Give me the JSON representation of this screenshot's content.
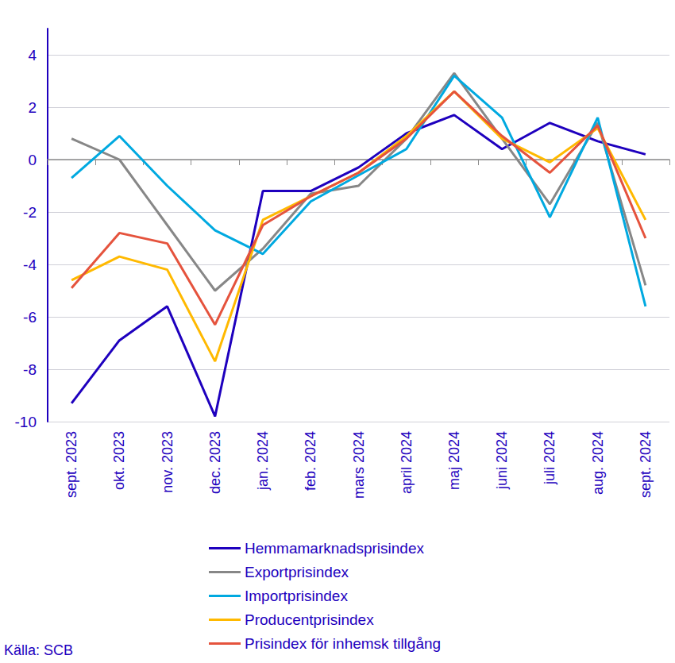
{
  "chart_data": {
    "type": "line",
    "categories": [
      "sept. 2023",
      "okt. 2023",
      "nov. 2023",
      "dec. 2023",
      "jan. 2024",
      "feb. 2024",
      "mars 2024",
      "april 2024",
      "maj 2024",
      "juni 2024",
      "juli 2024",
      "aug. 2024",
      "sept. 2024"
    ],
    "series": [
      {
        "name": "Hemmamarknadsprisindex",
        "color": "#1e00be",
        "values": [
          -9.3,
          -6.9,
          -5.6,
          -9.8,
          -1.2,
          -1.2,
          -0.3,
          1.0,
          1.7,
          0.4,
          1.4,
          0.7,
          0.2
        ]
      },
      {
        "name": "Exportprisindex",
        "color": "#878787",
        "values": [
          0.8,
          0.0,
          -2.5,
          -5.0,
          -3.4,
          -1.3,
          -1.0,
          0.8,
          3.3,
          0.8,
          -1.7,
          1.4,
          -4.8
        ]
      },
      {
        "name": "Importprisindex",
        "color": "#00a9e0",
        "values": [
          -0.7,
          0.9,
          -1.0,
          -2.7,
          -3.6,
          -1.6,
          -0.6,
          0.4,
          3.2,
          1.6,
          -2.2,
          1.6,
          -5.6
        ]
      },
      {
        "name": "Producentprisindex",
        "color": "#ffb900",
        "values": [
          -4.6,
          -3.7,
          -4.2,
          -7.7,
          -2.3,
          -1.4,
          -0.5,
          0.9,
          2.6,
          0.8,
          -0.1,
          1.2,
          -2.3
        ]
      },
      {
        "name": "Prisindex för inhemsk tillgång",
        "color": "#e5533d",
        "values": [
          -4.9,
          -2.8,
          -3.2,
          -6.3,
          -2.5,
          -1.4,
          -0.5,
          0.8,
          2.6,
          0.9,
          -0.5,
          1.3,
          -3.0
        ]
      }
    ],
    "ylim": [
      -10,
      5
    ],
    "yticks": [
      -10,
      -8,
      -6,
      -4,
      -2,
      0,
      2,
      4
    ],
    "grid": true,
    "legend": "bottom",
    "source": "Källa: SCB"
  }
}
